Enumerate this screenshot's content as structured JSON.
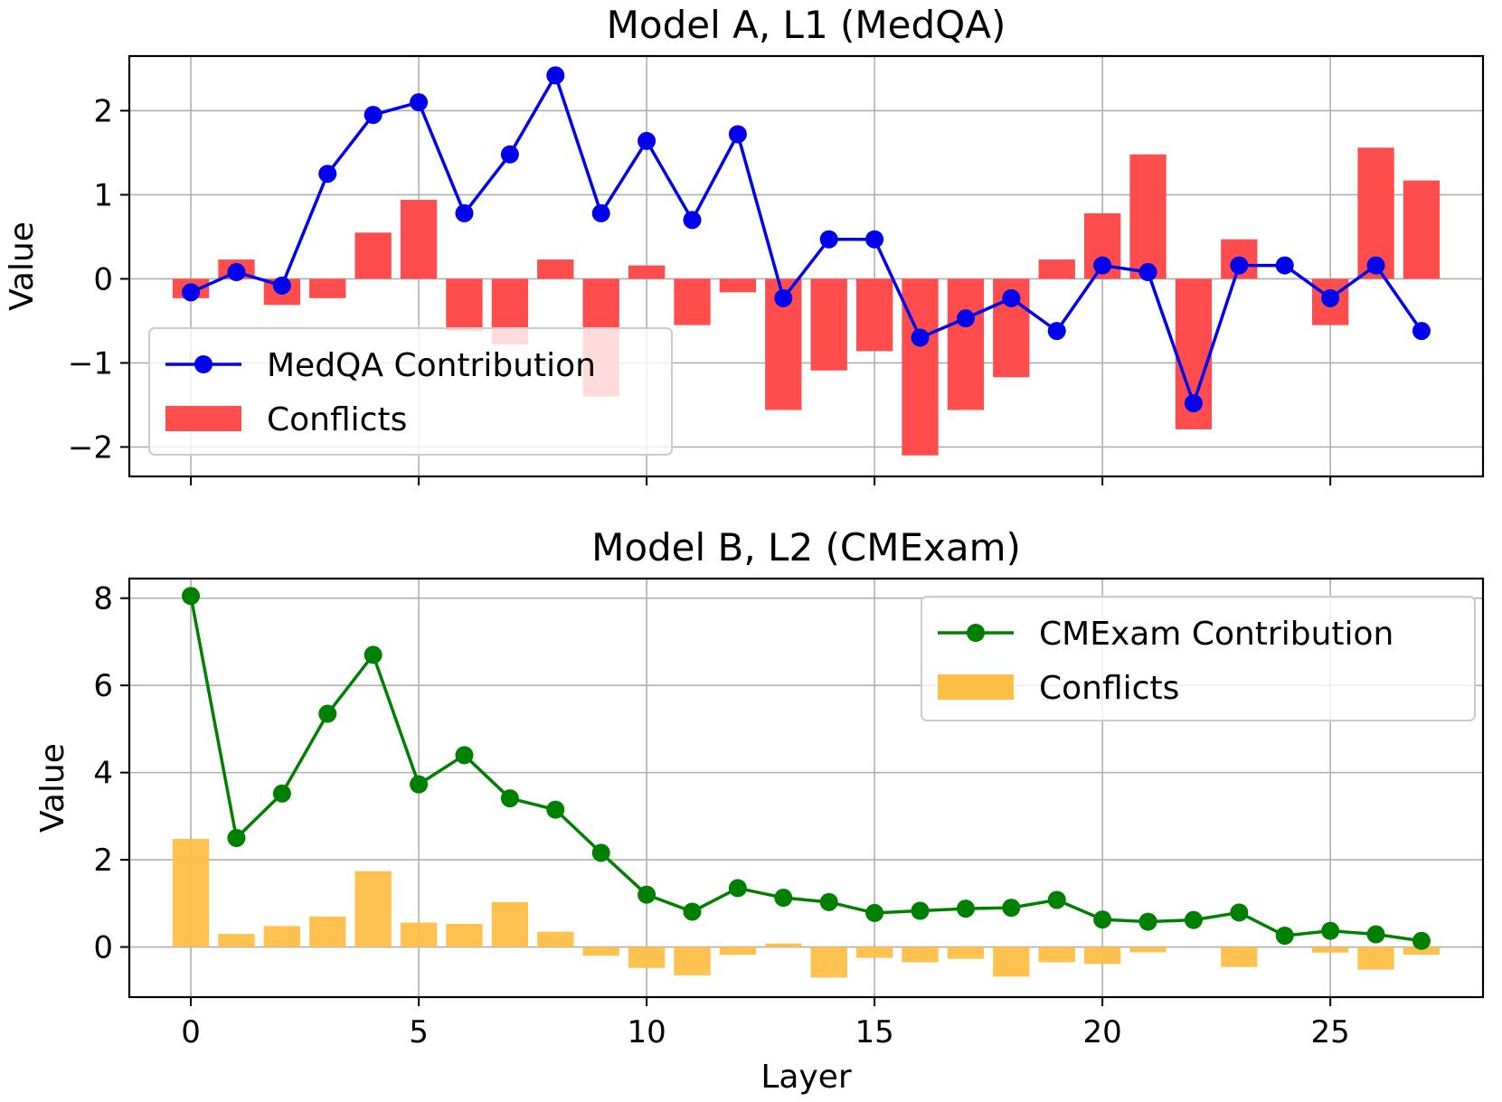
{
  "chart_data": [
    {
      "type": "bar",
      "title": "Model A, L1 (MedQA)",
      "xlabel": "",
      "ylabel": "Value",
      "xlim": [
        -1.35,
        28.35
      ],
      "ylim": [
        -2.35,
        2.65
      ],
      "xticks": [
        0,
        5,
        10,
        15,
        20,
        25
      ],
      "xtick_labels": [
        "",
        "",
        "",
        "",
        "",
        ""
      ],
      "yticks": [
        -2,
        -1,
        0,
        1,
        2
      ],
      "ytick_labels": [
        "−2",
        "−1",
        "0",
        "1",
        "2"
      ],
      "grid": true,
      "legend_position": "lower-left",
      "x": [
        0,
        1,
        2,
        3,
        4,
        5,
        6,
        7,
        8,
        9,
        10,
        11,
        12,
        13,
        14,
        15,
        16,
        17,
        18,
        19,
        20,
        21,
        22,
        23,
        24,
        25,
        26,
        27
      ],
      "series": [
        {
          "name": "MedQA Contribution",
          "kind": "line",
          "color": "#0000ee",
          "values": [
            -0.16,
            0.08,
            -0.08,
            1.25,
            1.95,
            2.1,
            0.78,
            1.48,
            2.42,
            0.78,
            1.64,
            0.7,
            1.72,
            -0.23,
            0.47,
            0.47,
            -0.7,
            -0.47,
            -0.23,
            -0.62,
            0.16,
            0.08,
            -1.48,
            0.16,
            0.16,
            -0.23,
            0.16,
            -0.62
          ]
        },
        {
          "name": "Conflicts",
          "kind": "bar",
          "color": "#ff4d4d",
          "values": [
            -0.23,
            0.23,
            -0.31,
            -0.23,
            0.55,
            0.94,
            -0.62,
            -0.78,
            0.23,
            -1.4,
            0.16,
            -0.55,
            -0.16,
            -1.56,
            -1.09,
            -0.86,
            -2.1,
            -1.56,
            -1.17,
            0.23,
            0.78,
            1.48,
            -1.79,
            0.47,
            0.0,
            -0.55,
            1.56,
            1.17
          ]
        }
      ]
    },
    {
      "type": "bar",
      "title": "Model B, L2 (CMExam)",
      "xlabel": "Layer",
      "ylabel": "Value",
      "xlim": [
        -1.35,
        28.35
      ],
      "ylim": [
        -1.15,
        8.45
      ],
      "xticks": [
        0,
        5,
        10,
        15,
        20,
        25
      ],
      "xtick_labels": [
        "0",
        "5",
        "10",
        "15",
        "20",
        "25"
      ],
      "yticks": [
        0,
        2,
        4,
        6,
        8
      ],
      "ytick_labels": [
        "0",
        "2",
        "4",
        "6",
        "8"
      ],
      "grid": true,
      "legend_position": "upper-right",
      "x": [
        0,
        1,
        2,
        3,
        4,
        5,
        6,
        7,
        8,
        9,
        10,
        11,
        12,
        13,
        14,
        15,
        16,
        17,
        18,
        19,
        20,
        21,
        22,
        23,
        24,
        25,
        26,
        27
      ],
      "series": [
        {
          "name": "CMExam Contribution",
          "kind": "line",
          "color": "#008000",
          "values": [
            8.05,
            2.5,
            3.52,
            5.35,
            6.7,
            3.73,
            4.4,
            3.41,
            3.15,
            2.16,
            1.2,
            0.81,
            1.35,
            1.13,
            1.03,
            0.78,
            0.83,
            0.88,
            0.9,
            1.08,
            0.63,
            0.58,
            0.62,
            0.79,
            0.26,
            0.37,
            0.29,
            0.14
          ]
        },
        {
          "name": "Conflicts",
          "kind": "bar",
          "color": "#ffbf47",
          "values": [
            2.48,
            0.3,
            0.48,
            0.7,
            1.74,
            0.56,
            0.53,
            1.03,
            0.35,
            -0.2,
            -0.48,
            -0.65,
            -0.18,
            0.08,
            -0.7,
            -0.25,
            -0.35,
            -0.27,
            -0.68,
            -0.35,
            -0.39,
            -0.12,
            0.0,
            -0.46,
            0.0,
            -0.13,
            -0.52,
            -0.18
          ]
        }
      ]
    }
  ]
}
